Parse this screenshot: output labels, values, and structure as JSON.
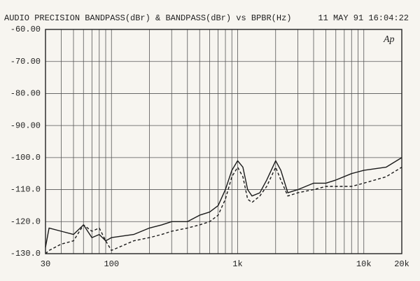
{
  "chart_data": {
    "type": "line",
    "title": "AUDIO PRECISION BANDPASS(dBr) & BANDPASS(dBr) vs BPBR(Hz)",
    "timestamp": "11 MAY 91 16:04:22",
    "logo": "Ap",
    "x": [
      30,
      32,
      40,
      50,
      60,
      70,
      80,
      90,
      100,
      150,
      200,
      250,
      300,
      400,
      500,
      600,
      700,
      800,
      900,
      1000,
      1100,
      1200,
      1300,
      1500,
      1700,
      2000,
      2200,
      2500,
      3000,
      4000,
      5000,
      6000,
      8000,
      10000,
      15000,
      20000
    ],
    "series": [
      {
        "color": "#1a1a1a",
        "dashed": false,
        "values": [
          -128,
          -122,
          -123,
          -124,
          -121,
          -125,
          -124,
          -126,
          -125,
          -124,
          -122,
          -121,
          -120,
          -120,
          -118,
          -117,
          -115,
          -110,
          -104,
          -101,
          -103,
          -110,
          -112,
          -111,
          -107,
          -101,
          -104,
          -111,
          -110,
          -108,
          -108,
          -107,
          -105,
          -104,
          -103,
          -100
        ]
      },
      {
        "color": "#1a1a1a",
        "dashed": true,
        "values": [
          -130,
          -129,
          -127,
          -126,
          -121,
          -123,
          -122,
          -126,
          -129,
          -126,
          -125,
          -124,
          -123,
          -122,
          -121,
          -120,
          -118,
          -113,
          -106,
          -103,
          -106,
          -113,
          -114,
          -112,
          -109,
          -103,
          -107,
          -112,
          -111,
          -110,
          -109,
          -109,
          -109,
          -108,
          -106,
          -103
        ]
      }
    ],
    "xlim": [
      30,
      20000
    ],
    "ylim": [
      -130,
      -60
    ],
    "xlog": true,
    "xticks": [
      30,
      100,
      {
        "value": 1000,
        "label": "1k"
      },
      {
        "value": 10000,
        "label": "10k"
      },
      {
        "value": 20000,
        "label": "20k"
      }
    ],
    "x_minor_ticks": [
      40,
      50,
      60,
      70,
      80,
      90,
      200,
      300,
      400,
      500,
      600,
      700,
      800,
      900,
      2000,
      3000,
      4000,
      5000,
      6000,
      7000,
      8000,
      9000
    ],
    "yticks": [
      {
        "value": -130,
        "label": "-130.0"
      },
      {
        "value": -120,
        "label": "-120.0"
      },
      {
        "value": -110,
        "label": "-110.0"
      },
      {
        "value": -100,
        "label": "-100.0"
      },
      {
        "value": -90,
        "label": "-90.00"
      },
      {
        "value": -80,
        "label": "-80.00"
      },
      {
        "value": -70,
        "label": "-70.00"
      },
      {
        "value": -60,
        "label": "-60.00"
      }
    ],
    "grid": true
  }
}
